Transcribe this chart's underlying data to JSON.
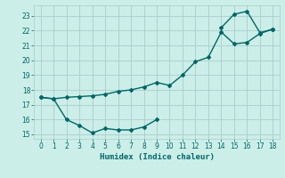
{
  "xlabel": "Humidex (Indice chaleur)",
  "bg_color": "#cceee8",
  "line_color": "#006666",
  "grid_color": "#aacccc",
  "line1_x": [
    0,
    1,
    2,
    3,
    4,
    5,
    6,
    7,
    8,
    9,
    10,
    11,
    12,
    13,
    14,
    15,
    16,
    17,
    18
  ],
  "line1_y": [
    17.5,
    17.4,
    17.5,
    17.55,
    17.6,
    17.7,
    17.9,
    18.0,
    18.2,
    18.5,
    18.3,
    19.0,
    19.9,
    20.2,
    21.9,
    21.1,
    21.2,
    21.8,
    22.1
  ],
  "line2a_x": [
    0,
    1,
    2,
    3,
    4,
    5,
    6,
    7,
    8,
    9
  ],
  "line2a_y": [
    17.5,
    17.4,
    16.0,
    15.6,
    15.1,
    15.4,
    15.3,
    15.3,
    15.5,
    16.0
  ],
  "line2b_x": [
    14,
    15,
    16,
    17,
    18
  ],
  "line2b_y": [
    22.2,
    23.1,
    23.3,
    21.85,
    22.1
  ],
  "xlim": [
    -0.5,
    18.5
  ],
  "ylim": [
    14.7,
    23.7
  ],
  "xticks": [
    0,
    1,
    2,
    3,
    4,
    5,
    6,
    7,
    8,
    9,
    10,
    11,
    12,
    13,
    14,
    15,
    16,
    17,
    18
  ],
  "yticks": [
    15,
    16,
    17,
    18,
    19,
    20,
    21,
    22,
    23
  ],
  "marker": "D",
  "markersize": 2.0,
  "linewidth": 1.0
}
